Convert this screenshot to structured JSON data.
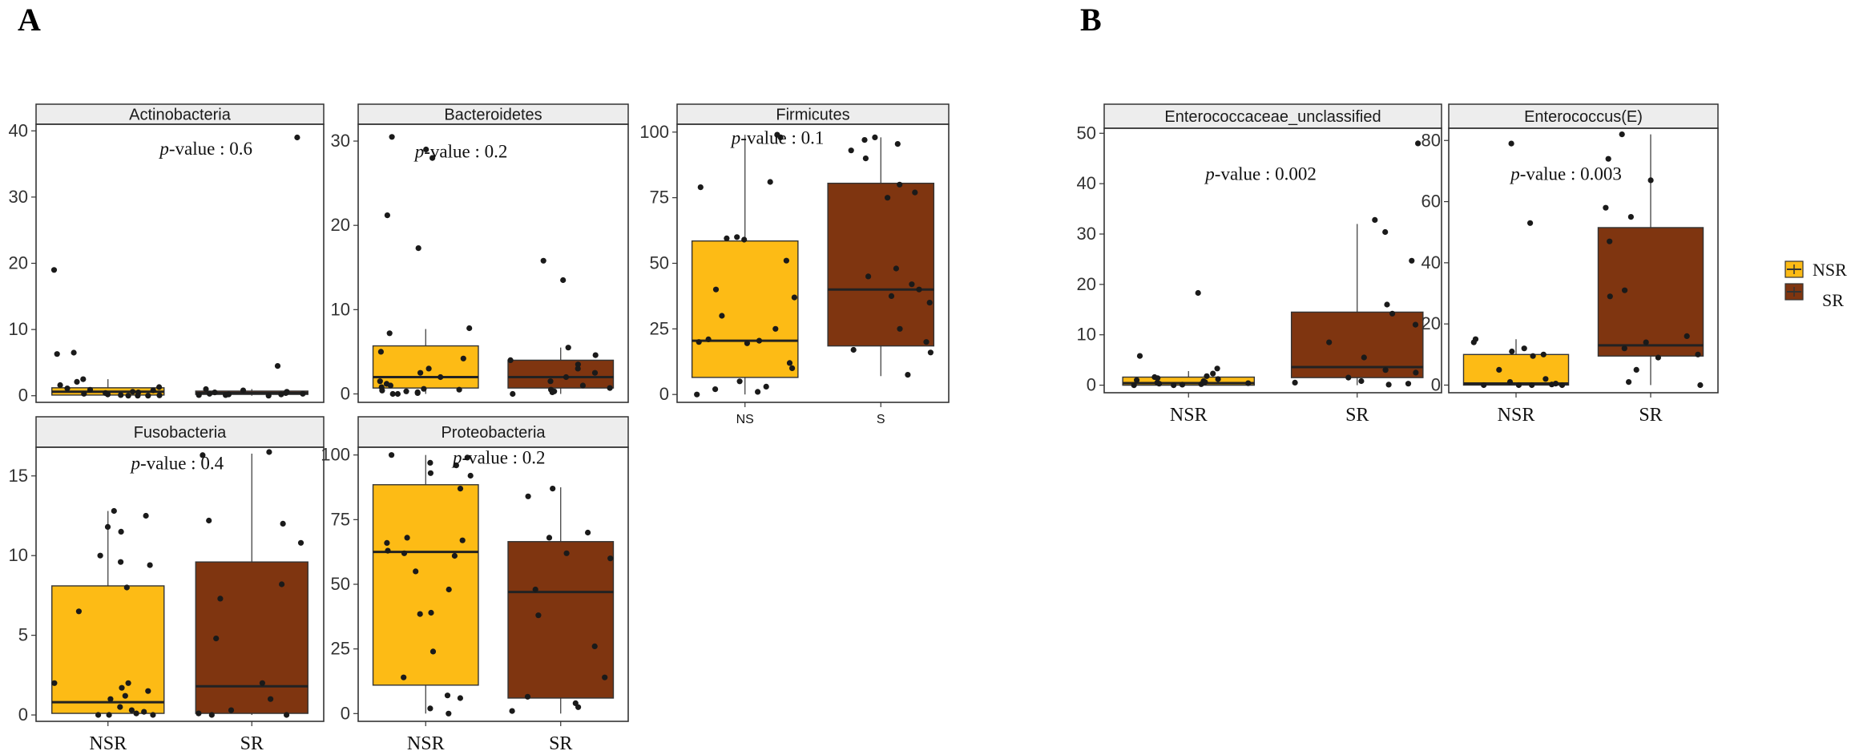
{
  "panel_labels": [
    "A",
    "B"
  ],
  "legend": {
    "entries": [
      {
        "label": "NSR",
        "color": "#FDBB15"
      },
      {
        "label": "SR",
        "color": "#7F3510"
      }
    ]
  },
  "colors": {
    "NSR": "#FDBB15",
    "SR": "#7F3510",
    "strip_bg": "#EDEDED",
    "point": "#1a1a1a"
  },
  "chart_data": [
    {
      "type": "box",
      "panel": "A",
      "title": "Actinobacteria",
      "pvalue_label": "-value : 0.6",
      "pvalue_italic": "p",
      "ylim": [
        -1,
        41
      ],
      "yticks": [
        0,
        10,
        20,
        30,
        40
      ],
      "categories": [
        "NSR",
        "SR"
      ],
      "show_xticks": false,
      "boxes": [
        {
          "group": "NSR",
          "q1": 0.1,
          "median": 0.6,
          "q3": 1.2,
          "whisker_low": 0.0,
          "whisker_high": 2.5,
          "points": [
            19.0,
            6.5,
            6.3,
            2.5,
            2.1,
            1.6,
            1.3,
            1.1,
            0.9,
            0.8,
            0.6,
            0.5,
            0.4,
            0.3,
            0.2,
            0.1,
            0.05,
            0.0,
            0.0,
            0.0
          ]
        },
        {
          "group": "SR",
          "q1": 0.2,
          "median": 0.4,
          "q3": 0.7,
          "whisker_low": 0.0,
          "whisker_high": 1.0,
          "points": [
            39.0,
            4.5,
            1.0,
            0.8,
            0.6,
            0.5,
            0.4,
            0.3,
            0.3,
            0.2,
            0.2,
            0.1,
            0.1,
            0.0
          ]
        }
      ]
    },
    {
      "type": "box",
      "panel": "A",
      "title": "Bacteroidetes",
      "pvalue_label": "-value : 0.2",
      "pvalue_italic": "p",
      "ylim": [
        -1,
        32
      ],
      "yticks": [
        0,
        10,
        20,
        30
      ],
      "categories": [
        "NSR",
        "SR"
      ],
      "show_xticks": false,
      "boxes": [
        {
          "group": "NSR",
          "q1": 0.7,
          "median": 2.0,
          "q3": 5.7,
          "whisker_low": 0.0,
          "whisker_high": 7.7,
          "points": [
            30.5,
            29.0,
            28.0,
            21.2,
            17.3,
            7.8,
            7.2,
            5.0,
            4.2,
            3.0,
            2.5,
            2.0,
            1.5,
            1.2,
            1.0,
            0.8,
            0.6,
            0.5,
            0.4,
            0.3,
            0.2,
            0.1,
            0.0,
            0.0
          ]
        },
        {
          "group": "SR",
          "q1": 0.7,
          "median": 2.0,
          "q3": 4.0,
          "whisker_low": 0.0,
          "whisker_high": 5.5,
          "points": [
            15.8,
            13.5,
            5.5,
            4.6,
            4.0,
            3.5,
            3.0,
            2.5,
            2.0,
            1.5,
            1.0,
            0.7,
            0.5,
            0.3,
            0.2,
            0.0
          ]
        }
      ]
    },
    {
      "type": "box",
      "panel": "A",
      "title": "Firmicutes",
      "pvalue_label": "-value : 0.1",
      "pvalue_italic": "p",
      "ylim": [
        -3,
        103
      ],
      "yticks": [
        0,
        25,
        50,
        75,
        100
      ],
      "categories": [
        "NS",
        "S"
      ],
      "show_xticks": true,
      "xtick_style": "small",
      "boxes": [
        {
          "group": "NSR",
          "q1": 6.5,
          "median": 20.5,
          "q3": 58.5,
          "whisker_low": 0.0,
          "whisker_high": 99.0,
          "points": [
            99.0,
            98.0,
            81.0,
            79.0,
            60.0,
            59.5,
            59.0,
            51.0,
            40.0,
            37.0,
            30.0,
            25.0,
            21.0,
            20.5,
            20.0,
            19.5,
            12.0,
            10.0,
            5.0,
            3.0,
            2.0,
            1.0,
            0.0
          ]
        },
        {
          "group": "SR",
          "q1": 18.5,
          "median": 40.0,
          "q3": 80.5,
          "whisker_low": 7.0,
          "whisker_high": 98.0,
          "points": [
            98.0,
            97.0,
            95.5,
            93.0,
            90.0,
            80.0,
            77.0,
            75.0,
            48.0,
            45.0,
            42.0,
            40.0,
            37.5,
            35.0,
            25.0,
            20.0,
            17.0,
            16.0,
            7.5
          ]
        }
      ]
    },
    {
      "type": "box",
      "panel": "A",
      "title": "Fusobacteria",
      "pvalue_label": "-value : 0.4",
      "pvalue_italic": "p",
      "ylim": [
        -0.4,
        16.8
      ],
      "yticks": [
        0,
        5,
        10,
        15
      ],
      "categories": [
        "NSR",
        "SR"
      ],
      "show_xticks": true,
      "xtick_style": "normal",
      "boxes": [
        {
          "group": "NSR",
          "q1": 0.1,
          "median": 0.8,
          "q3": 8.1,
          "whisker_low": 0.0,
          "whisker_high": 12.8,
          "points": [
            12.8,
            12.5,
            11.8,
            11.5,
            10.0,
            9.6,
            9.4,
            8.0,
            6.5,
            2.0,
            2.0,
            1.7,
            1.5,
            1.2,
            1.0,
            0.5,
            0.3,
            0.2,
            0.1,
            0.0,
            0.0,
            0.0
          ]
        },
        {
          "group": "SR",
          "q1": 0.1,
          "median": 1.8,
          "q3": 9.6,
          "whisker_low": 0.0,
          "whisker_high": 16.4,
          "points": [
            16.5,
            16.3,
            12.2,
            12.0,
            10.8,
            8.2,
            7.3,
            4.8,
            2.0,
            1.0,
            0.3,
            0.1,
            0.0,
            0.0
          ]
        }
      ]
    },
    {
      "type": "box",
      "panel": "A",
      "title": "Proteobacteria",
      "pvalue_label": "-value : 0.2",
      "pvalue_italic": "p",
      "ylim": [
        -3,
        103
      ],
      "yticks": [
        0,
        25,
        50,
        75,
        100
      ],
      "categories": [
        "NSR",
        "SR"
      ],
      "show_xticks": true,
      "xtick_style": "normal",
      "boxes": [
        {
          "group": "NSR",
          "q1": 11.0,
          "median": 62.5,
          "q3": 88.5,
          "whisker_low": 0.0,
          "whisker_high": 100.0,
          "points": [
            100.0,
            99.0,
            97.0,
            96.0,
            93.0,
            92.0,
            87.0,
            68.0,
            67.0,
            66.0,
            63.0,
            62.0,
            61.0,
            55.0,
            48.0,
            39.0,
            38.5,
            24.0,
            14.0,
            7.0,
            6.0,
            2.0,
            0.0
          ]
        },
        {
          "group": "SR",
          "q1": 6.0,
          "median": 47.0,
          "q3": 66.5,
          "whisker_low": 0.0,
          "whisker_high": 87.5,
          "points": [
            87.0,
            84.0,
            70.0,
            68.0,
            62.0,
            60.0,
            48.0,
            38.0,
            26.0,
            14.0,
            6.5,
            4.0,
            2.5,
            1.0
          ]
        }
      ]
    },
    {
      "type": "box",
      "panel": "B",
      "title": "Enterococcaceae_unclassified",
      "pvalue_label": "-value : 0.002",
      "pvalue_italic": "p",
      "ylim": [
        -1.5,
        51
      ],
      "yticks": [
        0,
        10,
        20,
        30,
        40,
        50
      ],
      "categories": [
        "NSR",
        "SR"
      ],
      "show_xticks": true,
      "xtick_style": "normal",
      "boxes": [
        {
          "group": "NSR",
          "q1": 0.0,
          "median": 0.4,
          "q3": 1.6,
          "whisker_low": 0.0,
          "whisker_high": 2.8,
          "points": [
            18.3,
            5.8,
            3.3,
            2.3,
            1.8,
            1.6,
            1.4,
            1.2,
            1.0,
            0.8,
            0.6,
            0.5,
            0.4,
            0.3,
            0.2,
            0.1,
            0.0,
            0.0
          ]
        },
        {
          "group": "SR",
          "q1": 1.5,
          "median": 3.6,
          "q3": 14.5,
          "whisker_low": 0.0,
          "whisker_high": 32.0,
          "points": [
            48.0,
            32.8,
            30.4,
            24.7,
            16.0,
            14.2,
            12.0,
            8.5,
            5.5,
            3.0,
            2.5,
            1.5,
            0.8,
            0.5,
            0.3,
            0.1
          ]
        }
      ]
    },
    {
      "type": "box",
      "panel": "B",
      "title": "Enterococcus(E)",
      "pvalue_label": "-value : 0.003",
      "pvalue_italic": "p",
      "ylim": [
        -2.5,
        84
      ],
      "yticks": [
        0,
        20,
        40,
        60,
        80
      ],
      "categories": [
        "NSR",
        "SR"
      ],
      "show_xticks": true,
      "xtick_style": "normal",
      "boxes": [
        {
          "group": "NSR",
          "q1": 0.0,
          "median": 0.5,
          "q3": 10.0,
          "whisker_low": 0.0,
          "whisker_high": 15.0,
          "points": [
            79.0,
            53.0,
            15.0,
            14.0,
            12.0,
            11.0,
            10.0,
            9.5,
            5.0,
            2.0,
            1.0,
            0.5,
            0.2,
            0.0,
            0.0,
            0.0,
            0.0
          ]
        },
        {
          "group": "SR",
          "q1": 9.5,
          "median": 13.0,
          "q3": 51.5,
          "whisker_low": 0.0,
          "whisker_high": 82.0,
          "points": [
            82.0,
            74.0,
            67.0,
            58.0,
            55.0,
            47.0,
            31.0,
            29.0,
            16.0,
            14.0,
            12.0,
            10.0,
            9.0,
            5.0,
            1.0,
            0.0
          ]
        }
      ]
    }
  ]
}
